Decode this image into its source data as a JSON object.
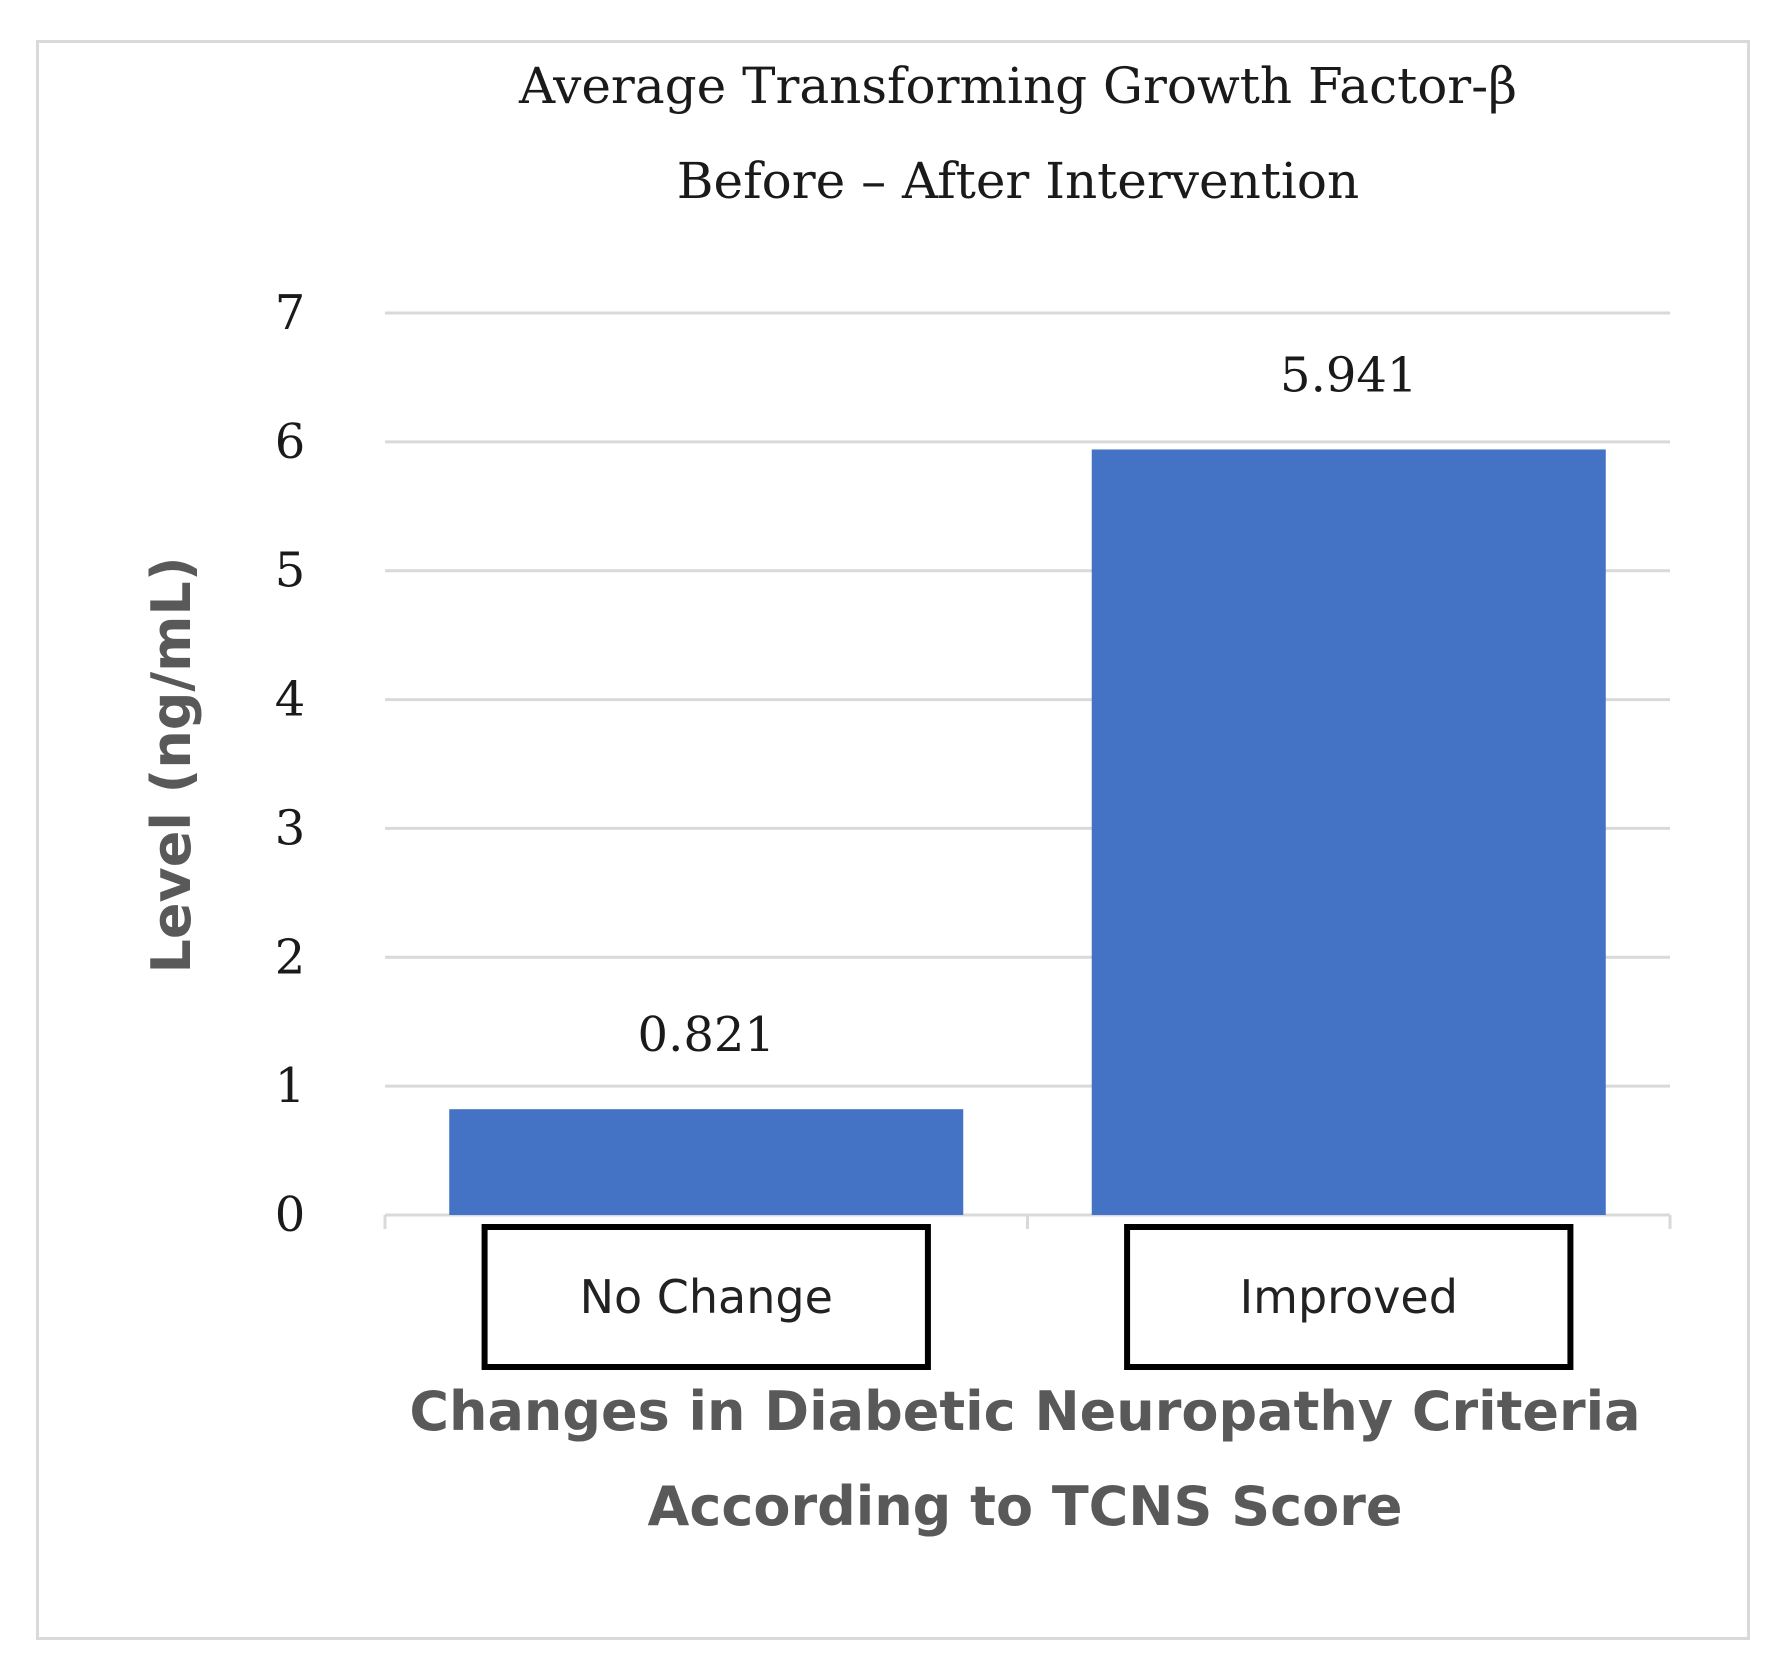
{
  "chart_data": {
    "type": "bar",
    "title_lines": [
      "Average Transforming Growth Factor-β",
      "Before – After Intervention"
    ],
    "categories": [
      "No Change",
      "Improved"
    ],
    "values": [
      0.821,
      5.941
    ],
    "data_labels": [
      "0.821",
      "5.941"
    ],
    "ylabel": "Level (ng/mL)",
    "xlabel_lines": [
      "Changes in Diabetic Neuropathy Criteria",
      "According to TCNS Score"
    ],
    "ylim": [
      0,
      7
    ],
    "yticks": [
      0,
      1,
      2,
      3,
      4,
      5,
      6,
      7
    ],
    "grid": true,
    "bar_color": "#4472C4"
  }
}
